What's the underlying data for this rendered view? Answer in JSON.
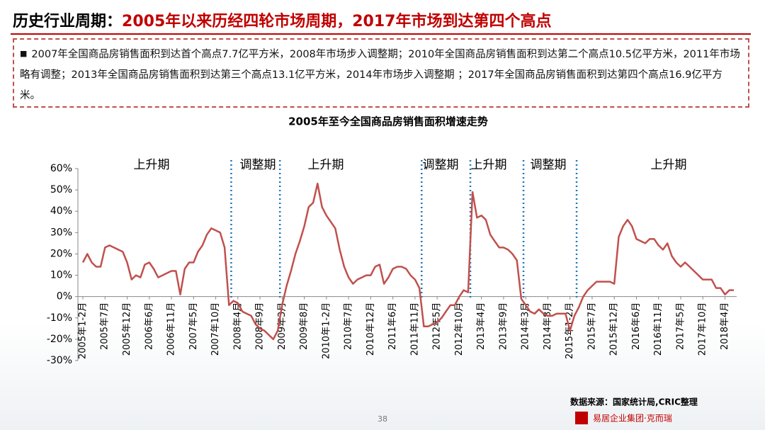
{
  "header": {
    "title_prefix": "历史行业周期：",
    "title_highlight": "2005年以来历经四轮市场周期，2017年市场到达第四个高点"
  },
  "summary": "2007年全国商品房销售面积到达首个高点7.7亿平方米，2008年市场步入调整期；2010年全国商品房销售面积到达第二个高点10.5亿平方米，2011年市场略有调整；2013年全国商品房销售面积到达第三个高点13.1亿平方米，2014年市场步入调整期 ；2017年全国商品房销售面积到达第四个高点16.9亿平方米。",
  "chart_data": {
    "type": "line",
    "title": "2005年至今全国商品房销售面积增速走势",
    "color": "#c0504d",
    "categories": [
      "2005年1-2月",
      null,
      null,
      null,
      null,
      "2005年7月",
      null,
      null,
      null,
      null,
      "2005年12月",
      null,
      null,
      null,
      null,
      "2006年6月",
      null,
      null,
      null,
      null,
      "2006年11月",
      null,
      null,
      null,
      null,
      "2007年5月",
      null,
      null,
      null,
      null,
      "2007年10月",
      null,
      null,
      null,
      null,
      "2008年4月",
      null,
      null,
      null,
      null,
      "2008年9月",
      null,
      null,
      null,
      null,
      "2009年3月",
      null,
      null,
      null,
      null,
      "2009年8月",
      null,
      null,
      null,
      null,
      "2010年1-2月",
      null,
      null,
      null,
      null,
      "2010年7月",
      null,
      null,
      null,
      null,
      "2010年12月",
      null,
      null,
      null,
      null,
      "2011年6月",
      null,
      null,
      null,
      null,
      "2011年11月",
      null,
      null,
      null,
      null,
      "2012年5月",
      null,
      null,
      null,
      null,
      "2012年10月",
      null,
      null,
      null,
      null,
      "2013年4月",
      null,
      null,
      null,
      null,
      "2013年9月",
      null,
      null,
      null,
      null,
      "2014年3月",
      null,
      null,
      null,
      null,
      "2014年8月",
      null,
      null,
      null,
      null,
      "2015年1-2月",
      null,
      null,
      null,
      null,
      "2015年7月",
      null,
      null,
      null,
      null,
      "2015年12月",
      null,
      null,
      null,
      null,
      "2016年6月",
      null,
      null,
      null,
      null,
      "2016年11月",
      null,
      null,
      null,
      null,
      "2017年5月",
      null,
      null,
      null,
      null,
      "2017年10月",
      null,
      null,
      null,
      null,
      "2018年4月",
      null,
      null
    ],
    "values": [
      16,
      20,
      16,
      14,
      14,
      23,
      24,
      23,
      22,
      21,
      16,
      8,
      10,
      9,
      15,
      16,
      13,
      9,
      10,
      11,
      12,
      12,
      1,
      13,
      16,
      16,
      21,
      24,
      29,
      32,
      31,
      30,
      23,
      -4,
      -2,
      -3,
      -7,
      -8,
      -9,
      -13,
      -15,
      -16,
      -18,
      -20,
      -16,
      -4,
      5,
      12,
      20,
      26,
      33,
      42,
      44,
      53,
      42,
      38,
      35,
      32,
      22,
      14,
      9,
      6,
      8,
      9,
      10,
      10,
      14,
      15,
      6,
      9,
      13,
      14,
      14,
      13,
      10,
      8,
      4,
      -14,
      -14,
      -13,
      -12,
      -10,
      -7,
      -4,
      -4,
      0,
      3,
      2,
      49,
      37,
      38,
      36,
      29,
      26,
      23,
      23,
      22,
      20,
      17,
      -1,
      -4,
      -7,
      -8,
      -6,
      -8,
      -9,
      -9,
      -8,
      -8,
      -8,
      -16,
      -9,
      -5,
      0,
      3,
      5,
      7,
      7,
      7,
      7,
      6,
      28,
      33,
      36,
      33,
      27,
      26,
      25,
      27,
      27,
      24,
      22,
      25,
      19,
      16,
      14,
      16,
      14,
      12,
      10,
      8,
      8,
      8,
      4,
      4,
      1,
      3,
      3
    ],
    "ylim": [
      -30,
      60
    ],
    "yticks": [
      {
        "value": -30,
        "label": "-30%"
      },
      {
        "value": -20,
        "label": "-20%"
      },
      {
        "value": -10,
        "label": "-10%"
      },
      {
        "value": 0,
        "label": "0%"
      },
      {
        "value": 10,
        "label": "10%"
      },
      {
        "value": 20,
        "label": "20%"
      },
      {
        "value": 30,
        "label": "30%"
      },
      {
        "value": 40,
        "label": "40%"
      },
      {
        "value": 50,
        "label": "50%"
      },
      {
        "value": 60,
        "label": "60%"
      }
    ],
    "grid": false,
    "phases": [
      "上升期",
      "调整期",
      "上升期",
      "调整期",
      "上升期",
      "调整期",
      "上升期"
    ]
  },
  "footer": {
    "source": "数据来源：国家统计局,CRIC整理",
    "page": "38",
    "logo": "易居企业集团·克而瑞"
  }
}
